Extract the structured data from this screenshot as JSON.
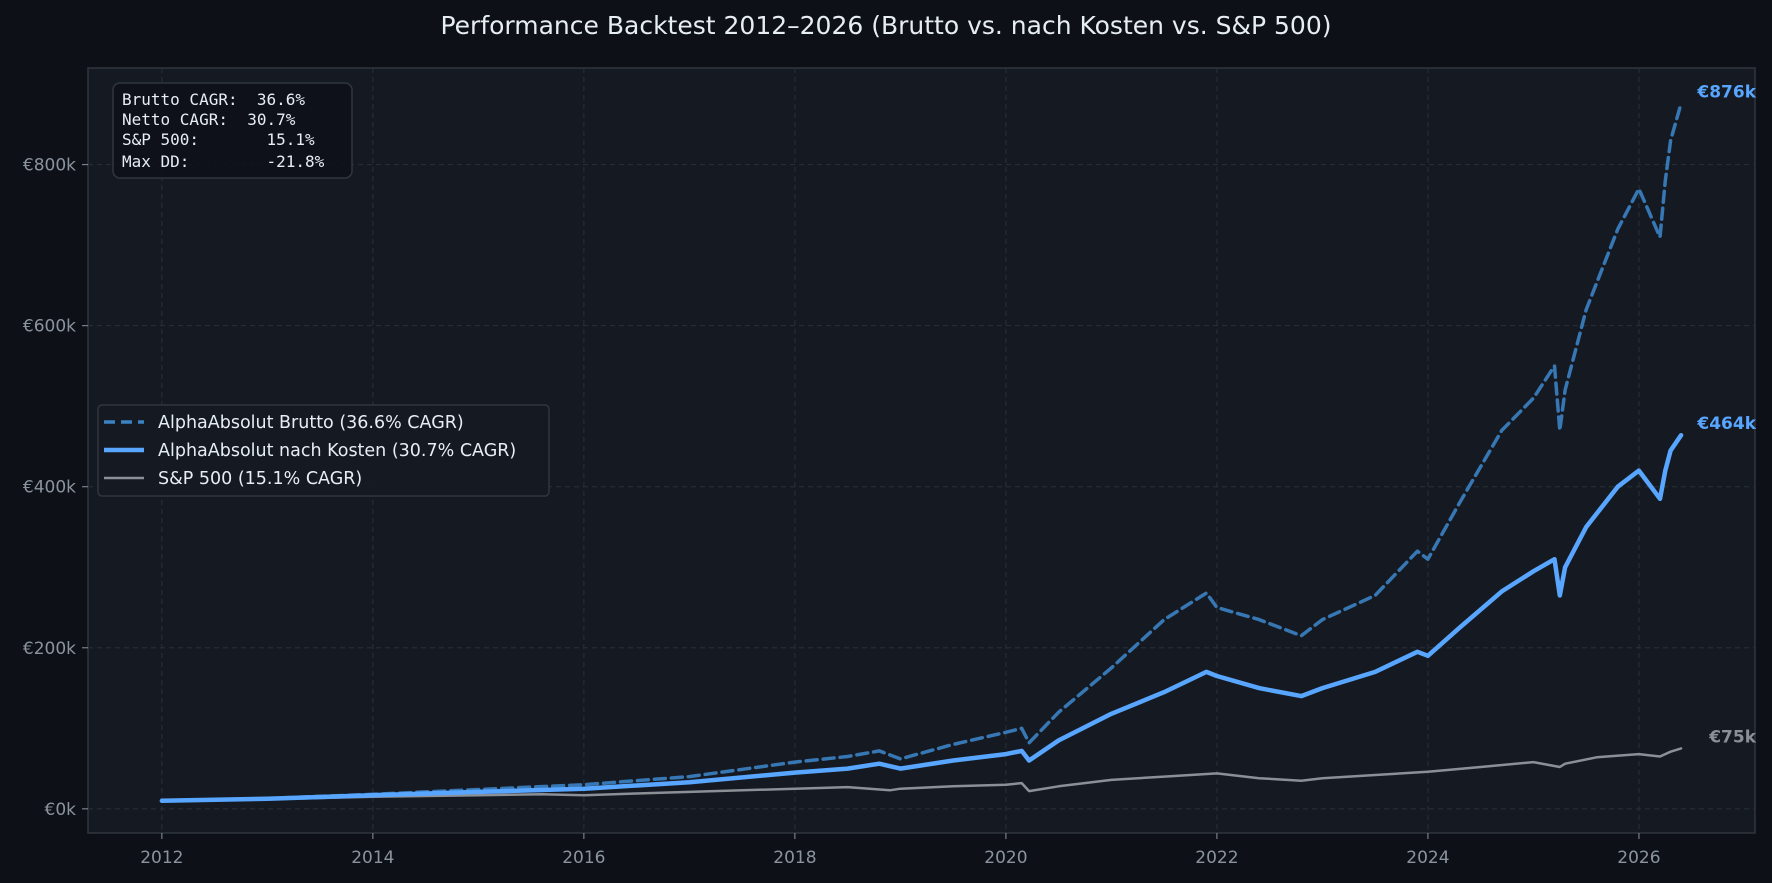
{
  "chart_data": {
    "type": "line",
    "title": "Performance Backtest 2012–2026 (Brutto vs. nach Kosten vs. S&P 500)",
    "xlabel": "",
    "ylabel": "",
    "xlim": [
      2011.3,
      2027.1
    ],
    "ylim": [
      -30000,
      920000
    ],
    "x_ticks": [
      2012,
      2014,
      2016,
      2018,
      2020,
      2022,
      2024,
      2026
    ],
    "x_tick_labels": [
      "2012",
      "2014",
      "2016",
      "2018",
      "2020",
      "2022",
      "2024",
      "2026"
    ],
    "y_ticks": [
      0,
      200000,
      400000,
      600000,
      800000
    ],
    "y_tick_labels": [
      "€0k",
      "€200k",
      "€400k",
      "€600k",
      "€800k"
    ],
    "grid": true,
    "legend": {
      "position": "center-left",
      "entries": [
        "AlphaAbsolut Brutto (36.6% CAGR)",
        "AlphaAbsolut nach Kosten (30.7% CAGR)",
        "S&P 500 (15.1% CAGR)"
      ]
    },
    "stats_box": {
      "position": "top-left",
      "lines": [
        "Brutto CAGR:  36.6%",
        "Netto CAGR:  30.7%",
        "S&P 500:       15.1%",
        "Max DD:        -21.8%"
      ]
    },
    "series": [
      {
        "color": "#3b82c4",
        "style": "dashed",
        "end_label": "€876k",
        "x": [
          2012.0,
          2013.0,
          2014.0,
          2015.0,
          2016.0,
          2017.0,
          2018.0,
          2018.5,
          2018.8,
          2019.0,
          2019.5,
          2020.0,
          2020.15,
          2020.22,
          2020.5,
          2021.0,
          2021.5,
          2021.9,
          2022.0,
          2022.4,
          2022.8,
          2023.0,
          2023.5,
          2023.9,
          2024.0,
          2024.3,
          2024.7,
          2025.0,
          2025.2,
          2025.25,
          2025.3,
          2025.5,
          2025.8,
          2026.0,
          2026.2,
          2026.25,
          2026.3,
          2026.4
        ],
        "y": [
          10000,
          13000,
          18000,
          24000,
          30000,
          40000,
          58000,
          65000,
          72000,
          62000,
          80000,
          95000,
          100000,
          82000,
          120000,
          175000,
          235000,
          268000,
          250000,
          235000,
          215000,
          235000,
          265000,
          320000,
          310000,
          380000,
          470000,
          510000,
          550000,
          470000,
          520000,
          620000,
          720000,
          770000,
          710000,
          780000,
          830000,
          876000
        ]
      },
      {
        "color": "#58a6ff",
        "style": "solid",
        "end_label": "€464k",
        "x": [
          2012.0,
          2013.0,
          2014.0,
          2015.0,
          2016.0,
          2017.0,
          2018.0,
          2018.5,
          2018.8,
          2019.0,
          2019.5,
          2020.0,
          2020.15,
          2020.22,
          2020.5,
          2021.0,
          2021.5,
          2021.9,
          2022.0,
          2022.4,
          2022.8,
          2023.0,
          2023.5,
          2023.9,
          2024.0,
          2024.3,
          2024.7,
          2025.0,
          2025.2,
          2025.25,
          2025.3,
          2025.5,
          2025.8,
          2026.0,
          2026.2,
          2026.25,
          2026.3,
          2026.4
        ],
        "y": [
          10000,
          12500,
          17000,
          21000,
          25000,
          33000,
          45000,
          50000,
          56000,
          50000,
          60000,
          68000,
          72000,
          60000,
          85000,
          118000,
          145000,
          170000,
          165000,
          150000,
          140000,
          150000,
          170000,
          195000,
          190000,
          225000,
          270000,
          295000,
          310000,
          265000,
          300000,
          350000,
          400000,
          420000,
          385000,
          420000,
          445000,
          464000
        ]
      },
      {
        "color": "#8b8f96",
        "style": "solid",
        "end_label": "€75k",
        "x": [
          2012.0,
          2013.0,
          2014.0,
          2015.0,
          2015.6,
          2016.0,
          2016.5,
          2017.0,
          2018.0,
          2018.5,
          2018.9,
          2019.0,
          2019.5,
          2020.0,
          2020.15,
          2020.22,
          2020.5,
          2021.0,
          2021.5,
          2022.0,
          2022.4,
          2022.8,
          2023.0,
          2023.5,
          2024.0,
          2024.5,
          2025.0,
          2025.25,
          2025.3,
          2025.6,
          2026.0,
          2026.2,
          2026.3,
          2026.4
        ],
        "y": [
          10000,
          12000,
          15000,
          17000,
          18000,
          17000,
          19000,
          21000,
          25000,
          27000,
          23000,
          25000,
          28000,
          30000,
          32000,
          22000,
          28000,
          36000,
          40000,
          44000,
          38000,
          35000,
          38000,
          42000,
          46000,
          52000,
          58000,
          52000,
          56000,
          64000,
          68000,
          65000,
          71000,
          75000
        ]
      }
    ]
  }
}
